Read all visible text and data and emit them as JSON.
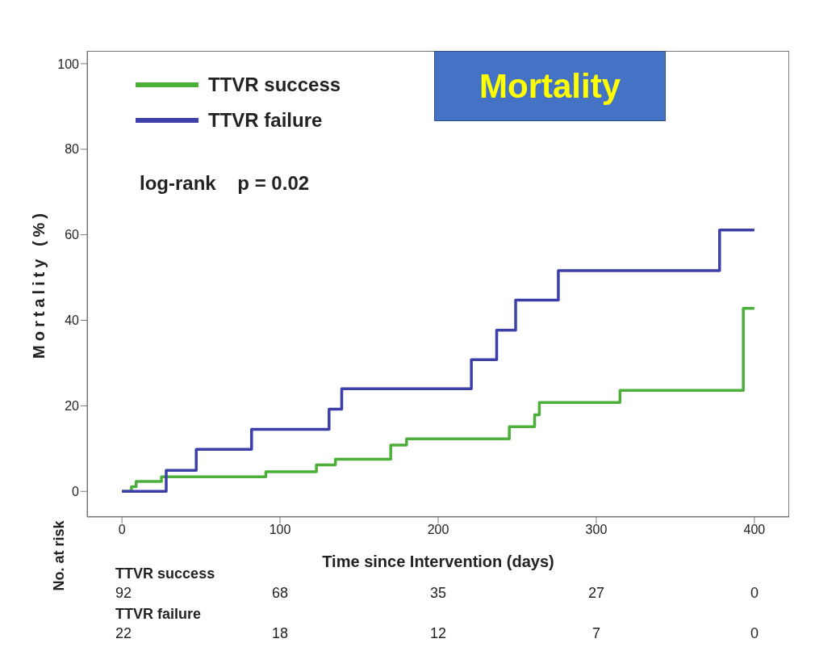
{
  "chart_data": {
    "type": "step",
    "title": "Mortality",
    "xlabel": "Time since Intervention (days)",
    "ylabel": "Mortality (%)",
    "xlim": [
      -22,
      422
    ],
    "xticks": [
      0,
      100,
      200,
      300,
      400
    ],
    "ylim": [
      -6,
      103
    ],
    "yticks": [
      0,
      20,
      40,
      60,
      80,
      100
    ],
    "legend": "top left",
    "line_style": "solid",
    "series": [
      {
        "name": "TTVR success",
        "color": "#4caf3a",
        "x": [
          0,
          6,
          9,
          25,
          91,
          123,
          135,
          170,
          180,
          245,
          261,
          264,
          315,
          393,
          400
        ],
        "values": [
          0,
          1.1,
          2.3,
          3.4,
          4.6,
          6.2,
          7.5,
          10.8,
          12.3,
          15.1,
          17.9,
          20.8,
          23.6,
          42.8,
          42.8
        ]
      },
      {
        "name": "TTVR failure",
        "color": "#3d3fa8",
        "x": [
          0,
          28,
          47,
          82,
          131,
          139,
          221,
          237,
          249,
          276,
          378,
          400
        ],
        "values": [
          0,
          4.9,
          9.8,
          14.5,
          19.2,
          24,
          30.8,
          37.7,
          44.7,
          51.6,
          61.1,
          61.1
        ]
      }
    ],
    "annotations": [
      "log-rank    p = 0.02",
      "No. at risk",
      "TTVR success",
      "92",
      "68",
      "35",
      "27",
      "0",
      "TTVR failure",
      "22",
      "18",
      "12",
      "7",
      "0"
    ]
  }
}
